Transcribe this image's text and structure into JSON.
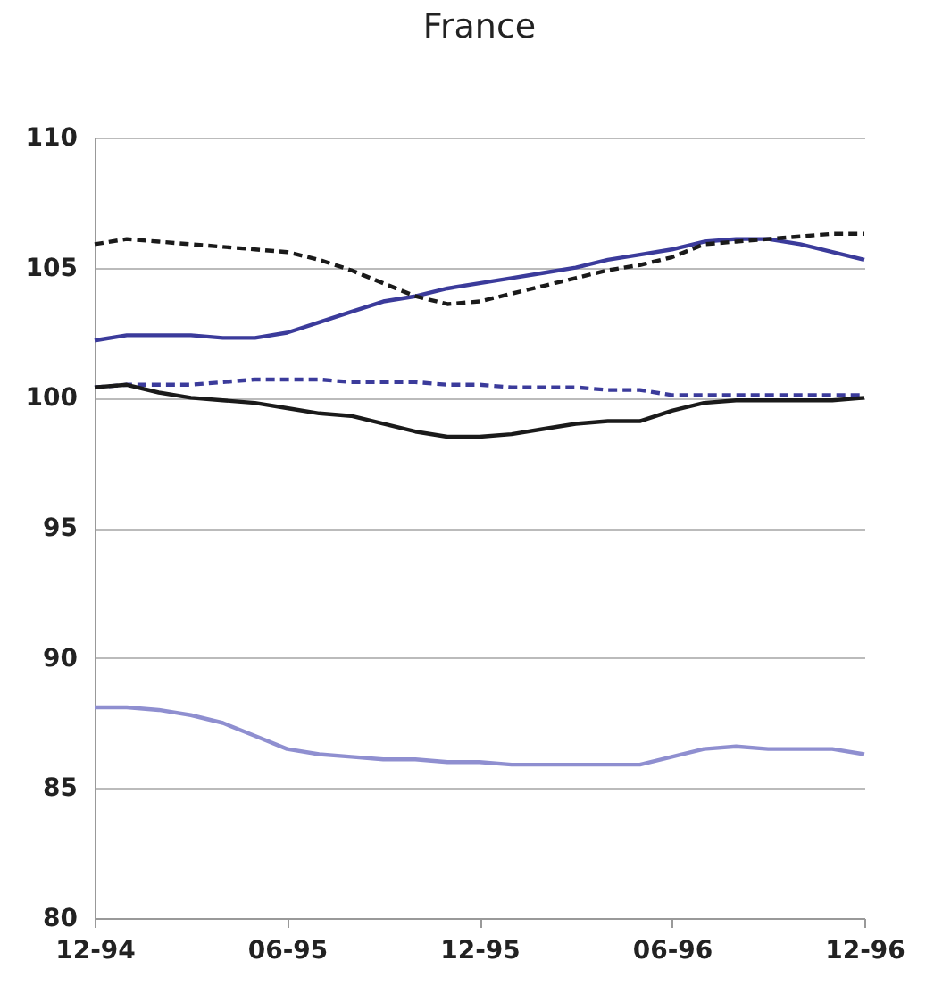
{
  "chart_data": {
    "type": "line",
    "title": "France",
    "categories": [
      "12-94",
      null,
      null,
      null,
      null,
      null,
      "06-95",
      null,
      null,
      null,
      null,
      null,
      "12-95",
      null,
      null,
      null,
      null,
      null,
      "06-96",
      null,
      null,
      null,
      null,
      null,
      "12-96"
    ],
    "series": [
      {
        "color": "#3b3b9b",
        "line_style": "solid",
        "values": [
          102.2,
          102.4,
          102.4,
          102.4,
          102.3,
          102.3,
          102.5,
          102.9,
          103.3,
          103.7,
          103.9,
          104.2,
          104.4,
          104.6,
          104.8,
          105.0,
          105.3,
          105.5,
          105.7,
          106.0,
          106.1,
          106.1,
          105.9,
          105.6,
          105.3
        ]
      },
      {
        "color": "#1a1a1a",
        "line_style": "dashed",
        "values": [
          105.9,
          106.1,
          106.0,
          105.9,
          105.8,
          105.7,
          105.6,
          105.3,
          104.9,
          104.4,
          103.9,
          103.6,
          103.7,
          104.0,
          104.3,
          104.6,
          104.9,
          105.1,
          105.4,
          105.9,
          106.0,
          106.1,
          106.2,
          106.3,
          106.3
        ]
      },
      {
        "color": "#3b3b9b",
        "line_style": "dashed",
        "values": [
          100.4,
          100.5,
          100.5,
          100.5,
          100.6,
          100.7,
          100.7,
          100.7,
          100.6,
          100.6,
          100.6,
          100.5,
          100.5,
          100.4,
          100.4,
          100.4,
          100.3,
          100.3,
          100.1,
          100.1,
          100.1,
          100.1,
          100.1,
          100.1,
          100.1
        ]
      },
      {
        "color": "#1a1a1a",
        "line_style": "solid",
        "values": [
          100.4,
          100.5,
          100.2,
          100.0,
          99.9,
          99.8,
          99.6,
          99.4,
          99.3,
          99.0,
          98.7,
          98.5,
          98.5,
          98.6,
          98.8,
          99.0,
          99.1,
          99.1,
          99.5,
          99.8,
          99.9,
          99.9,
          99.9,
          99.9,
          100.0
        ]
      },
      {
        "color": "#8f8fd0",
        "line_style": "solid",
        "values": [
          88.1,
          88.1,
          88.0,
          87.8,
          87.5,
          87.0,
          86.5,
          86.3,
          86.2,
          86.1,
          86.1,
          86.0,
          86.0,
          85.9,
          85.9,
          85.9,
          85.9,
          85.9,
          86.2,
          86.5,
          86.6,
          86.5,
          86.5,
          86.5,
          86.3
        ]
      }
    ],
    "ylim": [
      80,
      110
    ],
    "yticks": [
      80,
      85,
      90,
      95,
      100,
      105,
      110
    ],
    "grid": "y",
    "marker": "none"
  }
}
